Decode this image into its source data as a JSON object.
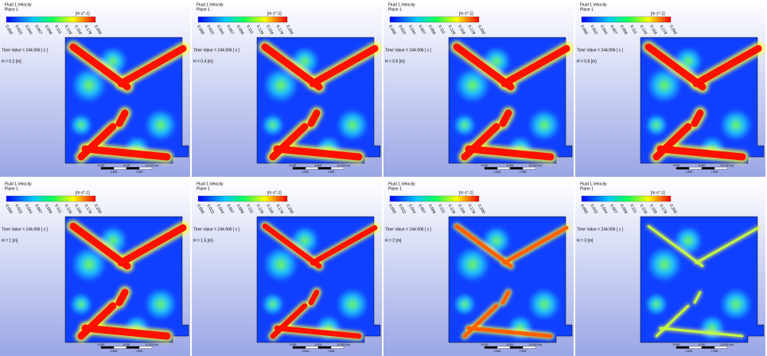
{
  "panels": [
    {
      "legend_title": "Fluid 1.Velocity",
      "plane": "Plane 1",
      "unit": "[m s^-1]",
      "colorbar_ticks": [
        "0.000",
        "0.022",
        "0.044",
        "0.067",
        "0.089",
        "0.111",
        "0.133",
        "0.156",
        "0.178",
        "0.200"
      ],
      "time": "Time Value = 244.906 [ s ]",
      "height": "H = 0.2 [m]",
      "scale_labels": [
        "0.000",
        "5.000",
        "10.000 (m)",
        "2.500",
        "7.500"
      ]
    },
    {
      "legend_title": "Fluid 1.Velocity",
      "plane": "Plane 1",
      "unit": "[m s^-1]",
      "colorbar_ticks": [
        "0.000",
        "0.022",
        "0.044",
        "0.067",
        "0.089",
        "0.111",
        "0.133",
        "0.156",
        "0.178",
        "0.200"
      ],
      "time": "Time Value = 244.906 [ s ]",
      "height": "H = 0.4 [m]",
      "scale_labels": [
        "0.000",
        "5.000",
        "10.000 (m)",
        "2.500",
        "7.500"
      ]
    },
    {
      "legend_title": "Fluid 1.Velocity",
      "plane": "Plane 1",
      "unit": "[m s^-1]",
      "colorbar_ticks": [
        "0.000",
        "0.022",
        "0.044",
        "0.067",
        "0.089",
        "0.111",
        "0.133",
        "0.156",
        "0.178",
        "0.200"
      ],
      "time": "Time Value = 244.906 [ s ]",
      "height": "H = 0.6 [m]",
      "scale_labels": [
        "0.000",
        "5.000",
        "10.000 (m)",
        "2.500",
        "7.500"
      ]
    },
    {
      "legend_title": "Fluid 1.Velocity",
      "plane": "Plane 1",
      "unit": "[m s^-1]",
      "colorbar_ticks": [
        "0.000",
        "0.022",
        "0.044",
        "0.067",
        "0.089",
        "0.111",
        "0.133",
        "0.156",
        "0.178",
        "0.200"
      ],
      "time": "Time Value = 244.906 [ s ]",
      "height": "H = 0.8 [m]",
      "scale_labels": [
        "0.000",
        "5.000",
        "10.000 (m)",
        "2.500",
        "7.500"
      ]
    },
    {
      "legend_title": "Fluid 1.Velocity",
      "plane": "Plane 1",
      "unit": "[m s^-1]",
      "colorbar_ticks": [
        "0.000",
        "0.022",
        "0.044",
        "0.067",
        "0.089",
        "0.111",
        "0.133",
        "0.156",
        "0.178",
        "0.200"
      ],
      "time": "Time Value = 244.906 [ s ]",
      "height": "H = 1 [m]",
      "scale_labels": [
        "0.000",
        "5.000",
        "10.000 (m)",
        "2.500",
        "7.500"
      ]
    },
    {
      "legend_title": "Fluid 1.Velocity",
      "plane": "Plane 1",
      "unit": "[m s^-1]",
      "colorbar_ticks": [
        "0.000",
        "0.022",
        "0.044",
        "0.067",
        "0.089",
        "0.111",
        "0.133",
        "0.156",
        "0.178",
        "0.200"
      ],
      "time": "Time Value = 244.906 [ s ]",
      "height": "H = 1.5 [m]",
      "scale_labels": [
        "0.000",
        "5.000",
        "10.000 (m)",
        "2.500",
        "7.500"
      ]
    },
    {
      "legend_title": "Fluid 1.Velocity",
      "plane": "Plane 1",
      "unit": "[m s^-1]",
      "colorbar_ticks": [
        "0.000",
        "0.022",
        "0.044",
        "0.067",
        "0.089",
        "0.111",
        "0.133",
        "0.156",
        "0.178",
        "0.200"
      ],
      "time": "Time Value = 244.906 [ s ]",
      "height": "H = 2 [m]",
      "scale_labels": [
        "0.000",
        "5.000",
        "10.000 (m)",
        "2.500",
        "7.500"
      ]
    },
    {
      "legend_title": "Fluid 1.Velocity",
      "plane": "Plane 1",
      "unit": "[m s^-1]",
      "colorbar_ticks": [
        "0.000",
        "0.022",
        "0.044",
        "0.067",
        "0.089",
        "0.111",
        "0.133",
        "0.156",
        "0.178",
        "0.200"
      ],
      "time": "Time Value = 244.906 [ s ]",
      "height": "H = 3 [m]",
      "scale_labels": [
        "0.000",
        "5.000",
        "10.000 (m)",
        "2.500",
        "7.500"
      ]
    }
  ]
}
